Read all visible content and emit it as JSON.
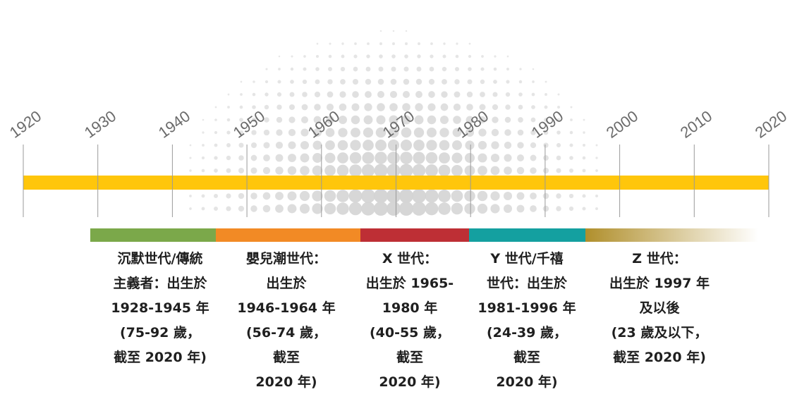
{
  "timeline": {
    "years": [
      "1920",
      "1930",
      "1940",
      "1950",
      "1960",
      "1970",
      "1980",
      "1990",
      "2000",
      "2010",
      "2020"
    ],
    "bar_color": "#ffc60b",
    "tick_color": "#9a9a9a",
    "dot_color": "#d4d4d4"
  },
  "generations": [
    {
      "name": "silent",
      "color": "#7ba84a",
      "lines": [
        "沉默世代/傳統",
        "主義者：出生於",
        "1928-1945 年",
        "(75-92 歲，",
        "截至 2020 年)"
      ]
    },
    {
      "name": "boomers",
      "color": "#f28a25",
      "lines": [
        "嬰兒潮世代：",
        "出生於",
        "1946-1964 年",
        "(56-74 歲，",
        "截至",
        "2020 年)"
      ]
    },
    {
      "name": "gen-x",
      "color": "#be2f35",
      "lines": [
        "X 世代：",
        "出生於 1965-",
        "1980 年",
        "(40-55 歲，",
        "截至",
        "2020 年)"
      ]
    },
    {
      "name": "gen-y",
      "color": "#14a0a0",
      "lines": [
        "Y 世代/千禧",
        "世代：出生於",
        "1981-1996 年",
        "(24-39 歲，",
        "截至",
        "2020 年)"
      ]
    },
    {
      "name": "gen-z",
      "color_start": "#b08f2c",
      "color_end": "#ffffff",
      "lines": [
        "Z 世代：",
        "出生於 1997 年",
        "及以後",
        "(23 歲及以下，",
        "截至 2020 年)"
      ]
    }
  ]
}
